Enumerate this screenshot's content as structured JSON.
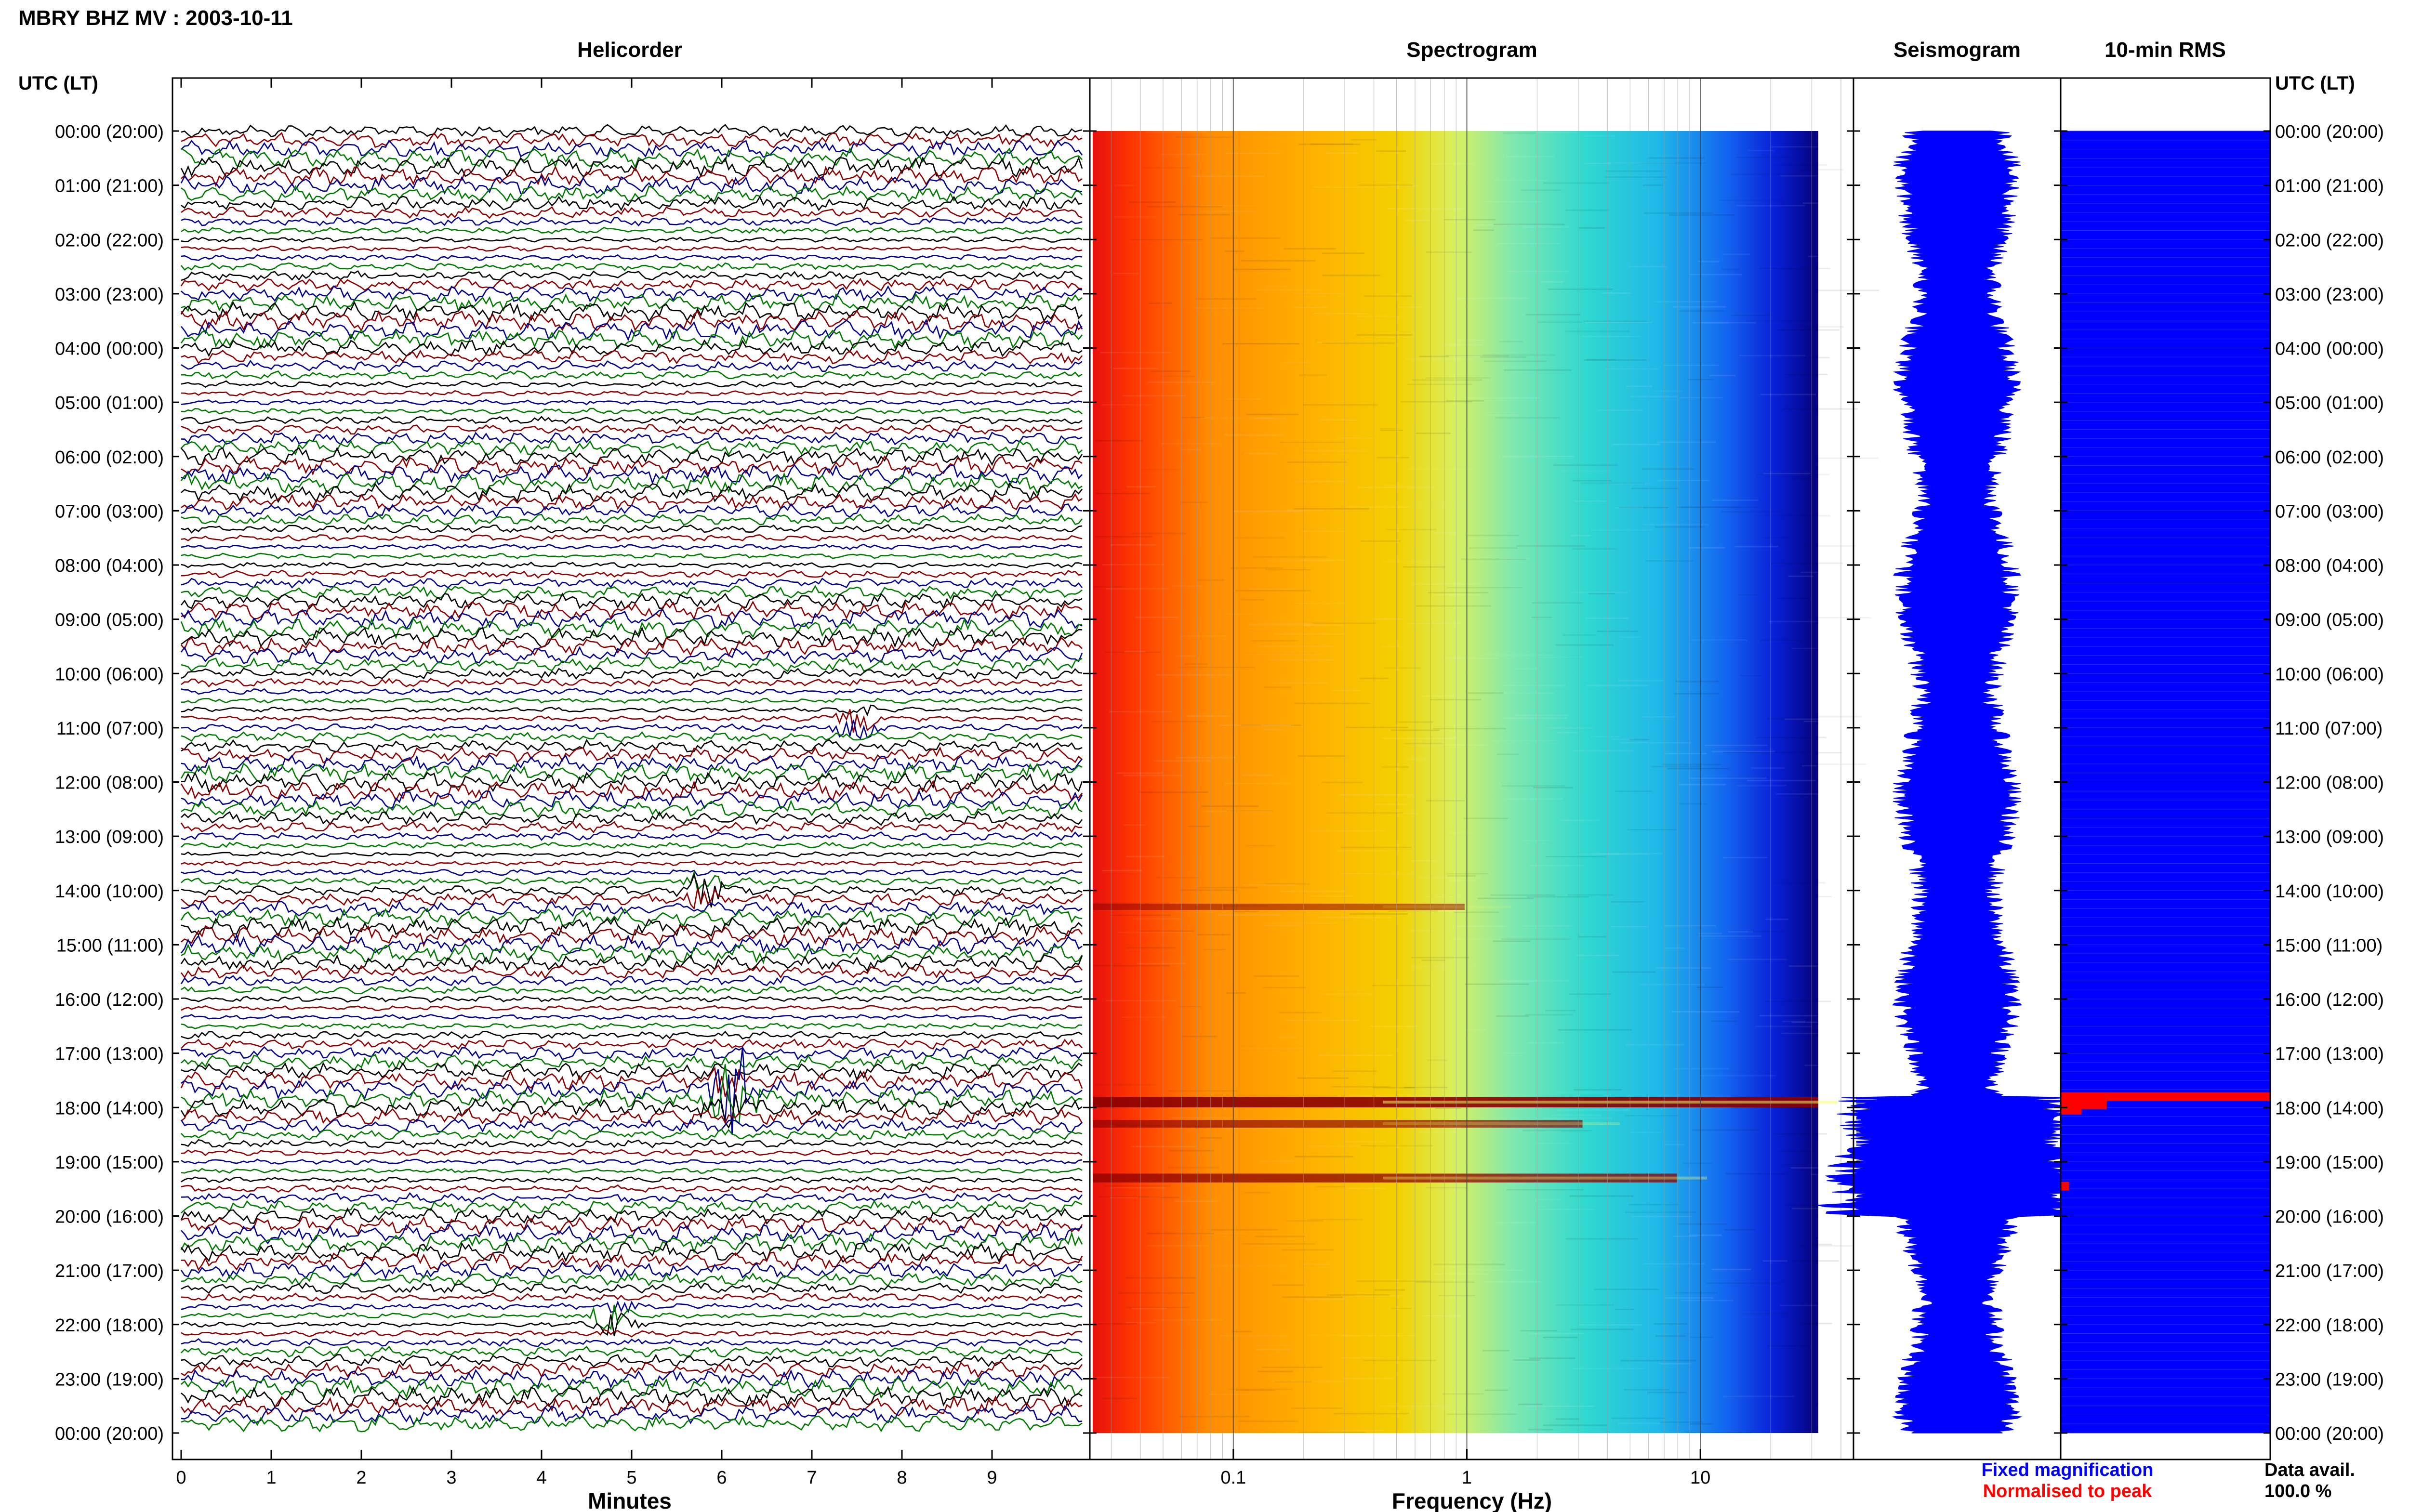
{
  "chart_data": {
    "type": "helicorder-spectrogram-panel",
    "title": "MBRY BHZ MV : 2003-10-11",
    "time_axis_label": "UTC (LT)",
    "time_ticks": [
      "00:00 (20:00)",
      "01:00 (21:00)",
      "02:00 (22:00)",
      "03:00 (23:00)",
      "04:00 (00:00)",
      "05:00 (01:00)",
      "06:00 (02:00)",
      "07:00 (03:00)",
      "08:00 (04:00)",
      "09:00 (05:00)",
      "10:00 (06:00)",
      "11:00 (07:00)",
      "12:00 (08:00)",
      "13:00 (09:00)",
      "14:00 (10:00)",
      "15:00 (11:00)",
      "16:00 (12:00)",
      "17:00 (13:00)",
      "18:00 (14:00)",
      "19:00 (15:00)",
      "20:00 (16:00)",
      "21:00 (17:00)",
      "22:00 (18:00)",
      "23:00 (19:00)",
      "00:00 (20:00)"
    ],
    "panels": {
      "helicorder": {
        "title": "Helicorder",
        "xlabel": "Minutes",
        "x_ticks": [
          "0",
          "1",
          "2",
          "3",
          "4",
          "5",
          "6",
          "7",
          "8",
          "9"
        ],
        "xlim": [
          0,
          10
        ],
        "trace_colors": [
          "#000000",
          "#8b0000",
          "#00008b",
          "#007a00"
        ],
        "events": [
          {
            "hour": 17.75,
            "minute": 6.1,
            "amplitude": "large"
          },
          {
            "hour": 10.9,
            "minute": 7.5,
            "amplitude": "small"
          },
          {
            "hour": 14.0,
            "minute": 5.8,
            "amplitude": "small"
          },
          {
            "hour": 21.9,
            "minute": 4.8,
            "amplitude": "small"
          }
        ]
      },
      "spectrogram": {
        "title": "Spectrogram",
        "xlabel": "Frequency (Hz)",
        "x_scale": "log",
        "x_ticks": [
          "0.1",
          "1",
          "10"
        ],
        "xlim": [
          0.025,
          40
        ],
        "colormap": "jet",
        "events": [
          {
            "hour": 17.9,
            "strength": 1.0
          },
          {
            "hour": 18.3,
            "strength": 0.5
          },
          {
            "hour": 19.3,
            "strength": 0.7
          },
          {
            "hour": 14.3,
            "strength": 0.25
          }
        ]
      },
      "seismogram": {
        "title": "Seismogram",
        "color": "#0000ff",
        "event_window_hours": [
          17.8,
          20.0
        ]
      },
      "rms": {
        "title": "10-min RMS",
        "fill_color": "#0000ff",
        "peak_color": "#ff0000",
        "peaks": [
          {
            "hour": 17.8,
            "fraction": 1.0
          },
          {
            "hour": 17.95,
            "fraction": 0.22
          },
          {
            "hour": 18.05,
            "fraction": 0.1
          },
          {
            "hour": 19.45,
            "fraction": 0.04
          }
        ]
      }
    },
    "legend": {
      "fixed_label": "Fixed magnification",
      "fixed_color": "#0000ff",
      "normalised_label": "Normalised to peak",
      "normalised_color": "#ff0000"
    },
    "data_availability": {
      "label": "Data avail.",
      "value": "100.0 %"
    }
  }
}
